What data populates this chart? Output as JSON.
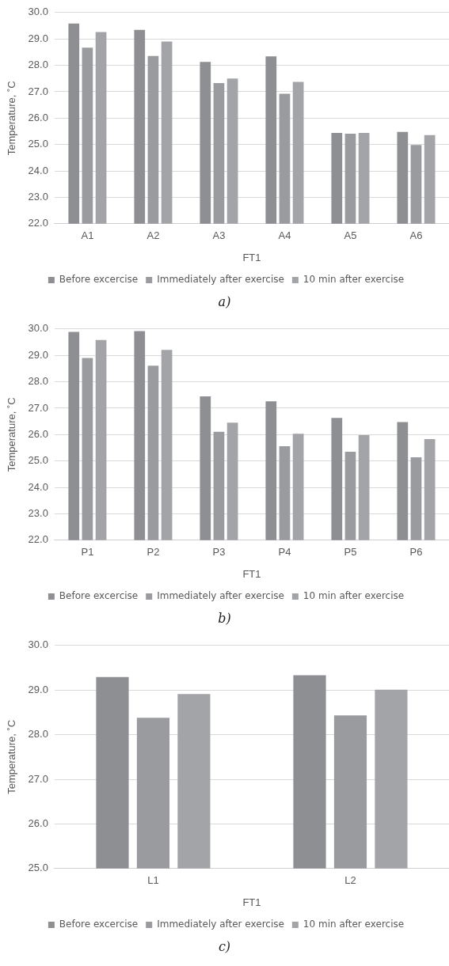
{
  "chart_data": [
    {
      "type": "bar",
      "xlabel": "FT1",
      "ylabel": "Temperature, ˚C",
      "categories": [
        "A1",
        "A2",
        "A3",
        "A4",
        "A5",
        "A6"
      ],
      "series": [
        {
          "name": "Before excercise",
          "color": "#8e8f93",
          "values": [
            29.58,
            29.34,
            28.13,
            28.34,
            25.44,
            25.48
          ]
        },
        {
          "name": "Immediately after exercise",
          "color": "#9a9b9f",
          "values": [
            28.67,
            28.35,
            27.33,
            26.92,
            25.41,
            24.98
          ]
        },
        {
          "name": "10 min after exercise",
          "color": "#a3a4a8",
          "values": [
            29.26,
            28.9,
            27.5,
            27.37,
            25.44,
            25.36
          ]
        }
      ],
      "ylim": [
        22,
        30
      ],
      "yticks": [
        {
          "value": 22,
          "label": "22.0"
        },
        {
          "value": 23,
          "label": "23.0"
        },
        {
          "value": 24,
          "label": "24.0"
        },
        {
          "value": 25,
          "label": "25.0"
        },
        {
          "value": 26,
          "label": "26.0"
        },
        {
          "value": 27,
          "label": "27.0"
        },
        {
          "value": 28,
          "label": "28.0"
        },
        {
          "value": 29,
          "label": "29.0"
        },
        {
          "value": 30,
          "label": "30.0"
        }
      ],
      "grid": "y",
      "legend": "bottom",
      "annotations": [
        "a)"
      ]
    },
    {
      "type": "bar",
      "xlabel": "FT1",
      "ylabel": "Temperature, ˚C",
      "categories": [
        "P1",
        "P2",
        "P3",
        "P4",
        "P5",
        "P6"
      ],
      "series": [
        {
          "name": "Before excercise",
          "color": "#8e8f93",
          "values": [
            29.89,
            29.92,
            27.45,
            27.26,
            26.63,
            26.47
          ]
        },
        {
          "name": "Immediately after exercise",
          "color": "#9a9b9f",
          "values": [
            28.9,
            28.61,
            26.11,
            25.56,
            25.35,
            25.14
          ]
        },
        {
          "name": "10 min after exercise",
          "color": "#a3a4a8",
          "values": [
            29.58,
            29.21,
            26.45,
            26.03,
            25.98,
            25.83
          ]
        }
      ],
      "ylim": [
        22,
        30
      ],
      "yticks": [
        {
          "value": 22,
          "label": "22.0"
        },
        {
          "value": 23,
          "label": "23.0"
        },
        {
          "value": 24,
          "label": "24.0"
        },
        {
          "value": 25,
          "label": "25.0"
        },
        {
          "value": 26,
          "label": "26.0"
        },
        {
          "value": 27,
          "label": "27.0"
        },
        {
          "value": 28,
          "label": "28.0"
        },
        {
          "value": 29,
          "label": "29.0"
        },
        {
          "value": 30,
          "label": "30.0"
        }
      ],
      "grid": "y",
      "legend": "bottom",
      "annotations": [
        "b)"
      ]
    },
    {
      "type": "bar",
      "xlabel": "FT1",
      "ylabel": "Temperature, ˚C",
      "categories": [
        "L1",
        "L2"
      ],
      "series": [
        {
          "name": "Before excercise",
          "color": "#8e8f93",
          "values": [
            29.29,
            29.33
          ]
        },
        {
          "name": "Immediately after exercise",
          "color": "#9a9b9f",
          "values": [
            28.38,
            28.43
          ]
        },
        {
          "name": "10 min after exercise",
          "color": "#a3a4a8",
          "values": [
            28.91,
            29.01
          ]
        }
      ],
      "ylim": [
        25,
        30
      ],
      "yticks": [
        {
          "value": 25,
          "label": "25.0"
        },
        {
          "value": 26,
          "label": "26.0"
        },
        {
          "value": 27,
          "label": "27.0"
        },
        {
          "value": 28,
          "label": "28.0"
        },
        {
          "value": 29,
          "label": "29.0"
        },
        {
          "value": 30,
          "label": "30.0"
        }
      ],
      "grid": "y",
      "legend": "bottom",
      "annotations": [
        "c)"
      ]
    }
  ]
}
